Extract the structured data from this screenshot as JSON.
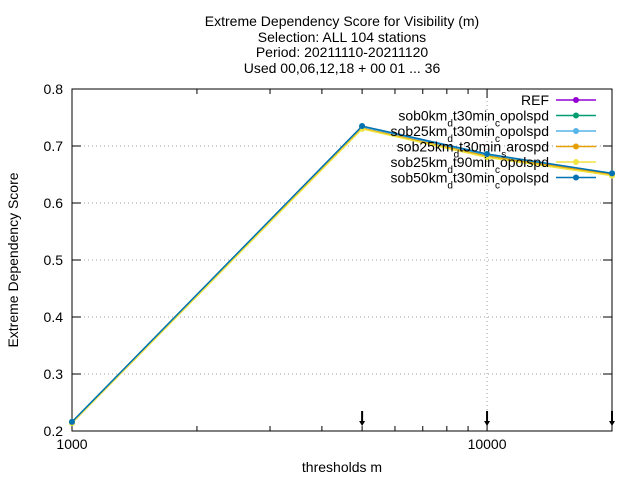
{
  "chart_data": {
    "type": "line",
    "title_lines": [
      "Extreme Dependency Score  for Visibility (m)",
      "Selection: ALL    104 stations",
      "Period: 20211110-20211120",
      "Used 00,06,12,18 + 00 01 ... 36"
    ],
    "xlabel": "thresholds m",
    "ylabel": "Extreme Dependency Score",
    "x_scale": "log",
    "xlim": [
      1000,
      20000
    ],
    "ylim": [
      0.2,
      0.8
    ],
    "x_ticks": [
      1000,
      10000
    ],
    "x_tick_labels": [
      "1000",
      "10000"
    ],
    "y_ticks": [
      0.2,
      0.3,
      0.4,
      0.5,
      0.6,
      0.7,
      0.8
    ],
    "y_tick_labels": [
      "0.2",
      "0.3",
      "0.4",
      "0.5",
      "0.6",
      "0.7",
      "0.8"
    ],
    "grid": true,
    "legend_position": "top-right",
    "x": [
      1000,
      5000,
      10000,
      20000
    ],
    "series": [
      {
        "name": "REF",
        "name_parts": [
          [
            "REF",
            ""
          ]
        ],
        "color": "#9400d3",
        "values": [
          0.215,
          0.733,
          0.683,
          0.651
        ]
      },
      {
        "name": "sob0km_d t30min_c opolspd",
        "name_parts": [
          [
            "sob0km",
            ""
          ],
          [
            "d",
            "sub"
          ],
          [
            "t30min",
            ""
          ],
          [
            "c",
            "sub"
          ],
          [
            "opolspd",
            ""
          ]
        ],
        "color": "#009e73",
        "values": [
          0.216,
          0.734,
          0.684,
          0.652
        ]
      },
      {
        "name": "sob25km_d t30min_c opolspd",
        "name_parts": [
          [
            "sob25km",
            ""
          ],
          [
            "d",
            "sub"
          ],
          [
            "t30min",
            ""
          ],
          [
            "c",
            "sub"
          ],
          [
            "opolspd",
            ""
          ]
        ],
        "color": "#56b4e9",
        "values": [
          0.215,
          0.733,
          0.685,
          0.652
        ]
      },
      {
        "name": "sob25km_d t30min_s arospd",
        "name_parts": [
          [
            "sob25km",
            ""
          ],
          [
            "d",
            "sub"
          ],
          [
            "t30min",
            ""
          ],
          [
            "s",
            "sub"
          ],
          [
            "arospd",
            ""
          ]
        ],
        "color": "#e69f00",
        "values": [
          0.214,
          0.731,
          0.682,
          0.65
        ]
      },
      {
        "name": "sob25km_d t90min_c opolspd",
        "name_parts": [
          [
            "sob25km",
            ""
          ],
          [
            "d",
            "sub"
          ],
          [
            "t90min",
            ""
          ],
          [
            "c",
            "sub"
          ],
          [
            "opolspd",
            ""
          ]
        ],
        "color": "#f0e442",
        "values": [
          0.214,
          0.73,
          0.68,
          0.648
        ]
      },
      {
        "name": "sob50km_d t30min_c opolspd",
        "name_parts": [
          [
            "sob50km",
            ""
          ],
          [
            "d",
            "sub"
          ],
          [
            "t30min",
            ""
          ],
          [
            "c",
            "sub"
          ],
          [
            "opolspd",
            ""
          ]
        ],
        "color": "#0072b2",
        "values": [
          0.216,
          0.735,
          0.686,
          0.652
        ]
      }
    ]
  }
}
